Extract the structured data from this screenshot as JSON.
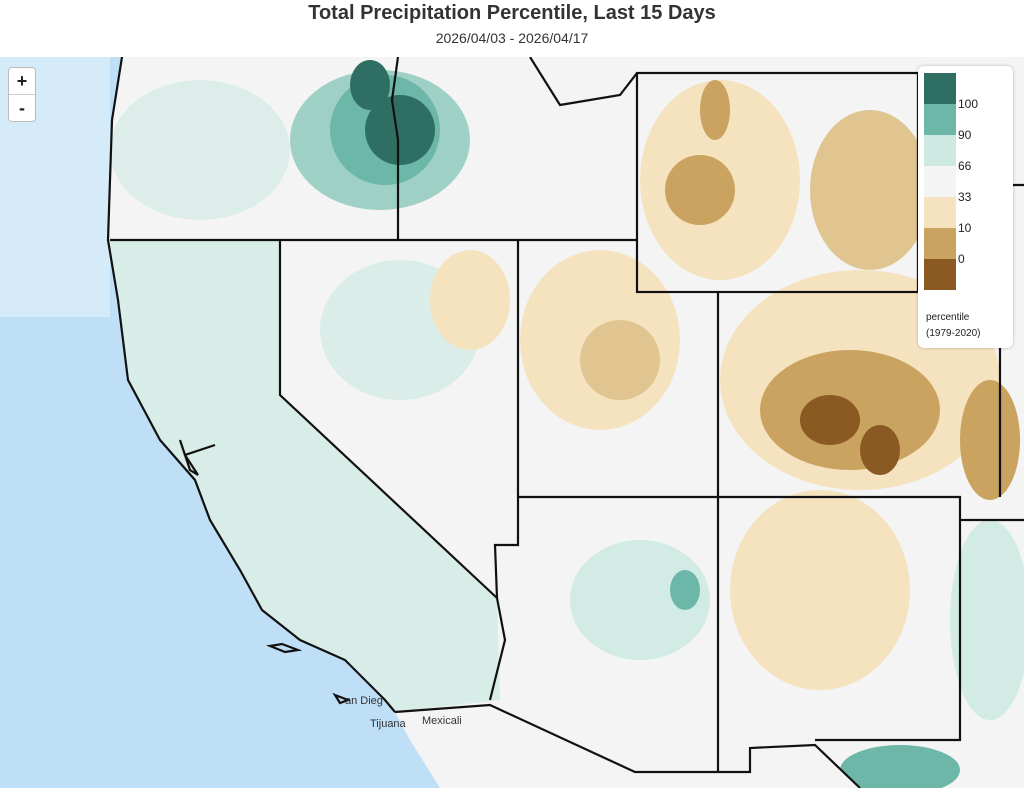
{
  "header": {
    "title": "Total Precipitation Percentile, Last 15 Days",
    "subtitle": "2026/04/03 - 2026/04/17"
  },
  "zoom": [
    "+",
    "-"
  ],
  "legend": {
    "colors": [
      "#2f6e62",
      "#6cb7a8",
      "#cde9e2",
      "#f4f4f4",
      "#f5e3c0",
      "#c9a35f",
      "#8a5a22"
    ],
    "labels": [
      100,
      90,
      66,
      33,
      10,
      0
    ],
    "title": "percentile",
    "period": "(1979-2020)"
  },
  "map_labels": [
    "an Dieg",
    "Tijuana",
    "Mexicali"
  ]
}
